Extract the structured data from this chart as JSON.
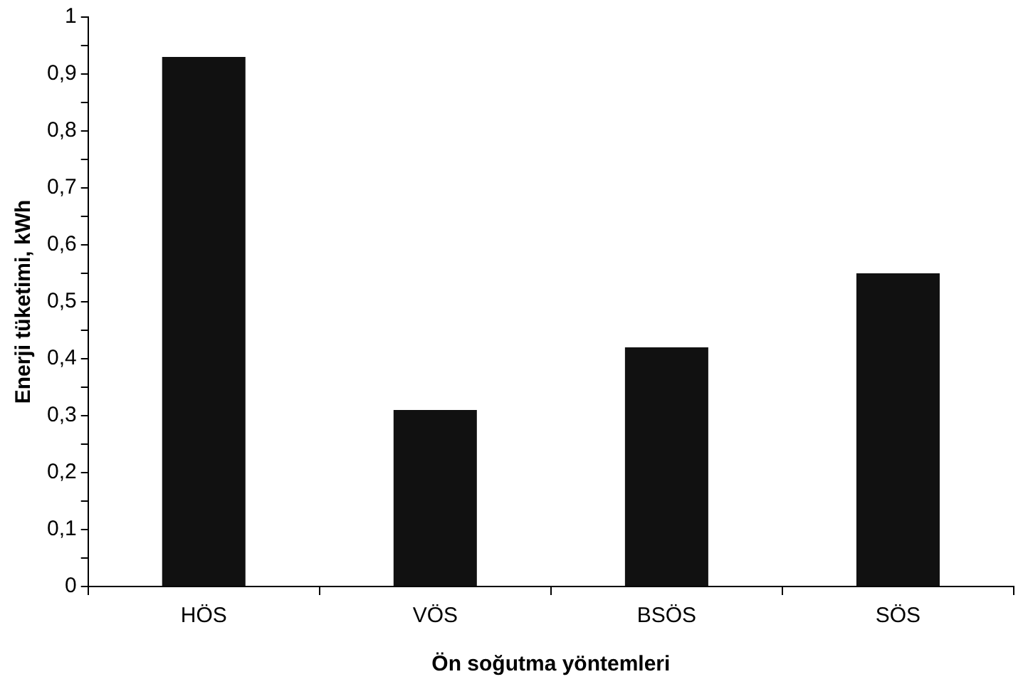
{
  "chart_data": {
    "type": "bar",
    "xlabel": "Ön soğutma yöntemleri",
    "ylabel": "Enerji tüketimi, kWh",
    "categories": [
      "HÖS",
      "VÖS",
      "BSÖS",
      "SÖS"
    ],
    "values": [
      0.93,
      0.31,
      0.42,
      0.55
    ],
    "color": "#111111",
    "ylim": [
      0,
      1
    ],
    "yticks": [
      0,
      {
        "value": 0.05,
        "label": null
      },
      {
        "value": 0.1,
        "label": "0,1"
      },
      {
        "value": 0.15,
        "label": null
      },
      {
        "value": 0.2,
        "label": "0,2"
      },
      {
        "value": 0.25,
        "label": null
      },
      {
        "value": 0.3,
        "label": "0,3"
      },
      {
        "value": 0.35,
        "label": null
      },
      {
        "value": 0.4,
        "label": "0,4"
      },
      {
        "value": 0.45,
        "label": null
      },
      {
        "value": 0.5,
        "label": "0,5"
      },
      {
        "value": 0.55,
        "label": null
      },
      {
        "value": 0.6,
        "label": "0,6"
      },
      {
        "value": 0.65,
        "label": null
      },
      {
        "value": 0.7,
        "label": "0,7"
      },
      {
        "value": 0.75,
        "label": null
      },
      {
        "value": 0.8,
        "label": "0,8"
      },
      {
        "value": 0.85,
        "label": null
      },
      {
        "value": 0.9,
        "label": "0,9"
      },
      {
        "value": 0.95,
        "label": null
      },
      1
    ],
    "grid": false,
    "legend": false
  }
}
